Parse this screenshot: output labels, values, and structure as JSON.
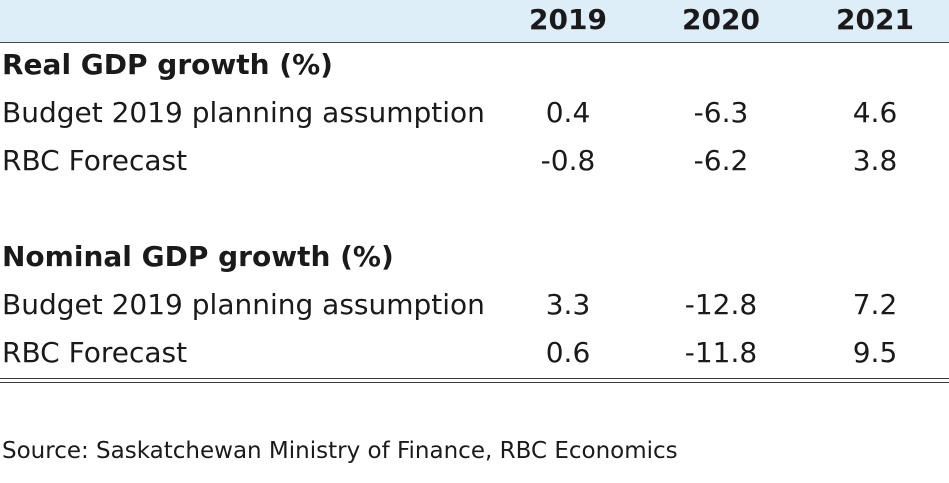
{
  "header": {
    "years": [
      "2019",
      "2020",
      "2021"
    ]
  },
  "sections": [
    {
      "title": "Real GDP growth (%)",
      "rows": [
        {
          "label": "Budget 2019 planning assumption",
          "values": [
            "0.4",
            "-6.3",
            "4.6"
          ]
        },
        {
          "label": "RBC Forecast",
          "values": [
            "-0.8",
            "-6.2",
            "3.8"
          ]
        }
      ]
    },
    {
      "title": "Nominal GDP growth (%)",
      "rows": [
        {
          "label": "Budget 2019 planning assumption",
          "values": [
            "3.3",
            "-12.8",
            "7.2"
          ]
        },
        {
          "label": "RBC Forecast",
          "values": [
            "0.6",
            "-11.8",
            "9.5"
          ]
        }
      ]
    }
  ],
  "source": "Source: Saskatchewan Ministry of Finance, RBC Economics"
}
